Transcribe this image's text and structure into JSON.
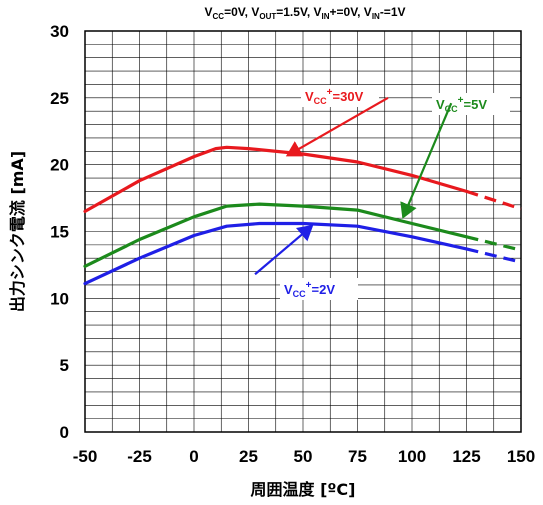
{
  "chart_data": {
    "type": "line",
    "conditions": [
      {
        "t": "V",
        "s": "CC",
        "r": "=0V, "
      },
      {
        "t": "V",
        "s": "OUT",
        "r": "=1.5V, "
      },
      {
        "t": "V",
        "s": "IN",
        "r": "+=0V, "
      },
      {
        "t": "V",
        "s": "IN",
        "r": "-=1V"
      }
    ],
    "xlabel": "周囲温度 [ºC]",
    "ylabel": "出力シンク電流 [mA]",
    "xlim": [
      -50,
      150
    ],
    "ylim": [
      0,
      30
    ],
    "xticks": [
      -50,
      -25,
      0,
      25,
      50,
      75,
      100,
      125,
      150
    ],
    "yticks": [
      0,
      5,
      10,
      15,
      20,
      25,
      30
    ],
    "x_minor_step": 12.5,
    "y_minor_step": 1,
    "grid": true,
    "series": [
      {
        "name": "VCC+=30V",
        "label": {
          "main": "V",
          "sub": "CC",
          "sup": "+",
          "rest": "=30V"
        },
        "color": "#e8191e",
        "solid": [
          [
            -50,
            16.5
          ],
          [
            -25,
            18.8
          ],
          [
            0,
            20.6
          ],
          [
            10,
            21.2
          ],
          [
            15,
            21.3
          ],
          [
            25,
            21.2
          ],
          [
            50,
            20.8
          ],
          [
            75,
            20.2
          ],
          [
            100,
            19.2
          ],
          [
            125,
            18.0
          ]
        ],
        "dashed": [
          [
            125,
            18.0
          ],
          [
            150,
            16.7
          ]
        ]
      },
      {
        "name": "VCC+=5V",
        "label": {
          "main": "V",
          "sub": "CC",
          "sup": "+",
          "rest": "=5V"
        },
        "color": "#1c8a1c",
        "solid": [
          [
            -50,
            12.4
          ],
          [
            -25,
            14.4
          ],
          [
            0,
            16.1
          ],
          [
            15,
            16.9
          ],
          [
            30,
            17.05
          ],
          [
            50,
            16.9
          ],
          [
            75,
            16.6
          ],
          [
            100,
            15.6
          ],
          [
            125,
            14.6
          ]
        ],
        "dashed": [
          [
            125,
            14.6
          ],
          [
            150,
            13.6
          ]
        ]
      },
      {
        "name": "VCC+=2V",
        "label": {
          "main": "V",
          "sub": "CC",
          "sup": "+",
          "rest": "=2V"
        },
        "color": "#1f1fe6",
        "solid": [
          [
            -50,
            11.1
          ],
          [
            -25,
            13.0
          ],
          [
            0,
            14.7
          ],
          [
            15,
            15.4
          ],
          [
            30,
            15.6
          ],
          [
            50,
            15.6
          ],
          [
            75,
            15.4
          ],
          [
            100,
            14.6
          ],
          [
            125,
            13.7
          ]
        ],
        "dashed": [
          [
            125,
            13.7
          ],
          [
            150,
            12.7
          ]
        ]
      }
    ]
  }
}
